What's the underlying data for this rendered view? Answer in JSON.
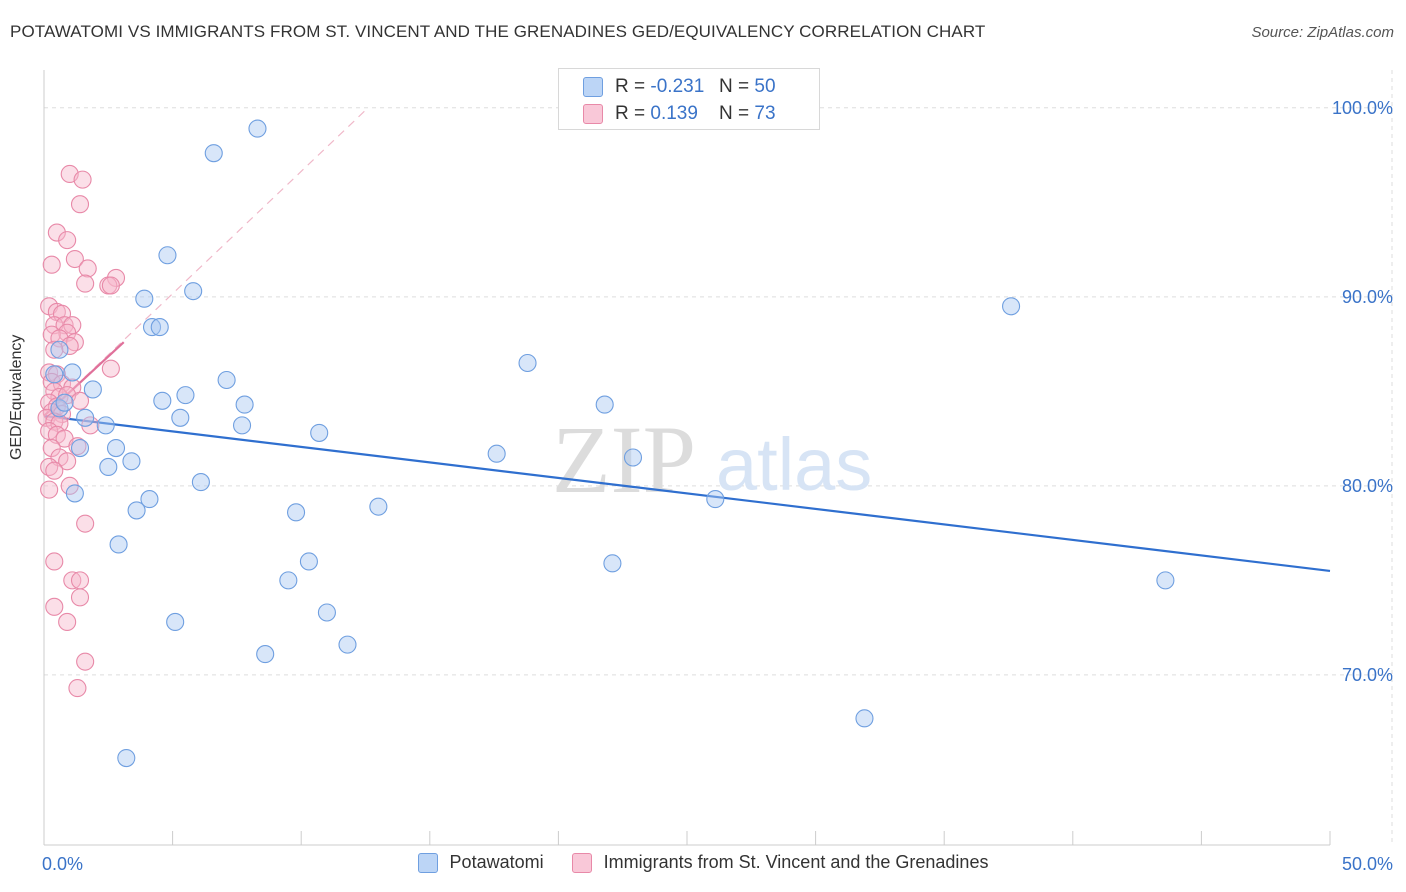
{
  "title": "POTAWATOMI VS IMMIGRANTS FROM ST. VINCENT AND THE GRENADINES GED/EQUIVALENCY CORRELATION CHART",
  "source": "Source: ZipAtlas.com",
  "watermark": {
    "zip": "ZIP",
    "atlas": "atlas"
  },
  "colors": {
    "blue_fill": "#a9c8f2",
    "blue_stroke": "#6f9fe0",
    "blue_line": "#2f6fcf",
    "pink_fill": "#f6b8cc",
    "pink_stroke": "#e889a8",
    "pink_line": "#e0709a",
    "axis_label": "#3a73c8",
    "grid": "#dddddd"
  },
  "legend_top": [
    {
      "r_label": "R =",
      "r_value": "-0.231",
      "n_label": "N =",
      "n_value": "50"
    },
    {
      "r_label": "R =",
      "r_value": "0.139",
      "n_label": "N =",
      "n_value": "73"
    }
  ],
  "legend_bottom": [
    "Potawatomi",
    "Immigrants from St. Vincent and the Grenadines"
  ],
  "chart_data": {
    "type": "scatter",
    "ylabel": "GED/Equivalency",
    "xlim": [
      0,
      50
    ],
    "ylim": [
      61,
      102
    ],
    "x_tick_labels": [
      {
        "value": 0,
        "label": "0.0%"
      },
      {
        "value": 50,
        "label": "50.0%"
      }
    ],
    "y_tick_labels": [
      {
        "value": 100,
        "label": "100.0%"
      },
      {
        "value": 90,
        "label": "90.0%"
      },
      {
        "value": 80,
        "label": "80.0%"
      },
      {
        "value": 70,
        "label": "70.0%"
      }
    ],
    "grid": true,
    "legend_position": "top-center",
    "series": [
      {
        "name": "Potawatomi",
        "color": "blue",
        "trend": {
          "x": [
            0,
            50
          ],
          "y": [
            83.7,
            75.5
          ]
        },
        "points": [
          [
            8.3,
            98.9
          ],
          [
            6.6,
            97.6
          ],
          [
            4.8,
            92.2
          ],
          [
            5.8,
            90.3
          ],
          [
            3.9,
            89.9
          ],
          [
            4.2,
            88.4
          ],
          [
            4.5,
            88.4
          ],
          [
            37.6,
            89.5
          ],
          [
            0.6,
            87.2
          ],
          [
            18.8,
            86.5
          ],
          [
            1.1,
            86.0
          ],
          [
            0.4,
            85.9
          ],
          [
            7.1,
            85.6
          ],
          [
            1.9,
            85.1
          ],
          [
            5.5,
            84.8
          ],
          [
            4.6,
            84.5
          ],
          [
            7.8,
            84.3
          ],
          [
            21.8,
            84.3
          ],
          [
            0.6,
            84.1
          ],
          [
            0.8,
            84.4
          ],
          [
            1.6,
            83.6
          ],
          [
            5.3,
            83.6
          ],
          [
            7.7,
            83.2
          ],
          [
            2.4,
            83.2
          ],
          [
            10.7,
            82.8
          ],
          [
            2.8,
            82.0
          ],
          [
            1.4,
            82.0
          ],
          [
            17.6,
            81.7
          ],
          [
            22.9,
            81.5
          ],
          [
            3.4,
            81.3
          ],
          [
            2.5,
            81.0
          ],
          [
            6.1,
            80.2
          ],
          [
            1.2,
            79.6
          ],
          [
            4.1,
            79.3
          ],
          [
            26.1,
            79.3
          ],
          [
            13.0,
            78.9
          ],
          [
            3.6,
            78.7
          ],
          [
            9.8,
            78.6
          ],
          [
            2.9,
            76.9
          ],
          [
            10.3,
            76.0
          ],
          [
            22.1,
            75.9
          ],
          [
            9.5,
            75.0
          ],
          [
            43.6,
            75.0
          ],
          [
            11.0,
            73.3
          ],
          [
            5.1,
            72.8
          ],
          [
            11.8,
            71.6
          ],
          [
            8.6,
            71.1
          ],
          [
            31.9,
            67.7
          ],
          [
            3.2,
            65.6
          ]
        ]
      },
      {
        "name": "Immigrants from St. Vincent and the Grenadines",
        "color": "pink",
        "trend": {
          "x": [
            0,
            3.1
          ],
          "y": [
            83.7,
            87.6
          ]
        },
        "trend_extended": {
          "x": [
            0,
            12.6
          ],
          "y": [
            83.7,
            100.0
          ]
        },
        "points": [
          [
            1.0,
            96.5
          ],
          [
            1.5,
            96.2
          ],
          [
            1.4,
            94.9
          ],
          [
            0.5,
            93.4
          ],
          [
            0.9,
            93.0
          ],
          [
            1.2,
            92.0
          ],
          [
            0.3,
            91.7
          ],
          [
            1.7,
            91.5
          ],
          [
            2.8,
            91.0
          ],
          [
            1.6,
            90.7
          ],
          [
            2.5,
            90.6
          ],
          [
            2.6,
            90.6
          ],
          [
            0.2,
            89.5
          ],
          [
            0.5,
            89.2
          ],
          [
            0.7,
            89.1
          ],
          [
            0.4,
            88.5
          ],
          [
            0.8,
            88.5
          ],
          [
            1.1,
            88.5
          ],
          [
            0.9,
            88.1
          ],
          [
            0.3,
            88.0
          ],
          [
            0.6,
            87.8
          ],
          [
            1.2,
            87.6
          ],
          [
            1.0,
            87.4
          ],
          [
            0.4,
            87.2
          ],
          [
            2.6,
            86.2
          ],
          [
            0.2,
            86.0
          ],
          [
            0.5,
            85.9
          ],
          [
            0.3,
            85.5
          ],
          [
            0.7,
            85.4
          ],
          [
            1.1,
            85.2
          ],
          [
            0.4,
            85.0
          ],
          [
            0.6,
            84.7
          ],
          [
            0.9,
            84.8
          ],
          [
            0.2,
            84.4
          ],
          [
            0.5,
            84.2
          ],
          [
            1.4,
            84.5
          ],
          [
            0.3,
            83.9
          ],
          [
            0.7,
            83.8
          ],
          [
            0.1,
            83.6
          ],
          [
            0.4,
            83.4
          ],
          [
            0.6,
            83.3
          ],
          [
            1.8,
            83.2
          ],
          [
            0.2,
            82.9
          ],
          [
            0.5,
            82.7
          ],
          [
            0.8,
            82.5
          ],
          [
            0.3,
            82.0
          ],
          [
            1.3,
            82.1
          ],
          [
            0.6,
            81.5
          ],
          [
            0.9,
            81.3
          ],
          [
            0.2,
            81.0
          ],
          [
            0.4,
            80.8
          ],
          [
            1.0,
            80.0
          ],
          [
            0.2,
            79.8
          ],
          [
            1.6,
            78.0
          ],
          [
            0.4,
            76.0
          ],
          [
            1.1,
            75.0
          ],
          [
            1.4,
            75.0
          ],
          [
            1.4,
            74.1
          ],
          [
            0.4,
            73.6
          ],
          [
            0.9,
            72.8
          ],
          [
            1.6,
            70.7
          ],
          [
            1.3,
            69.3
          ]
        ]
      }
    ]
  }
}
